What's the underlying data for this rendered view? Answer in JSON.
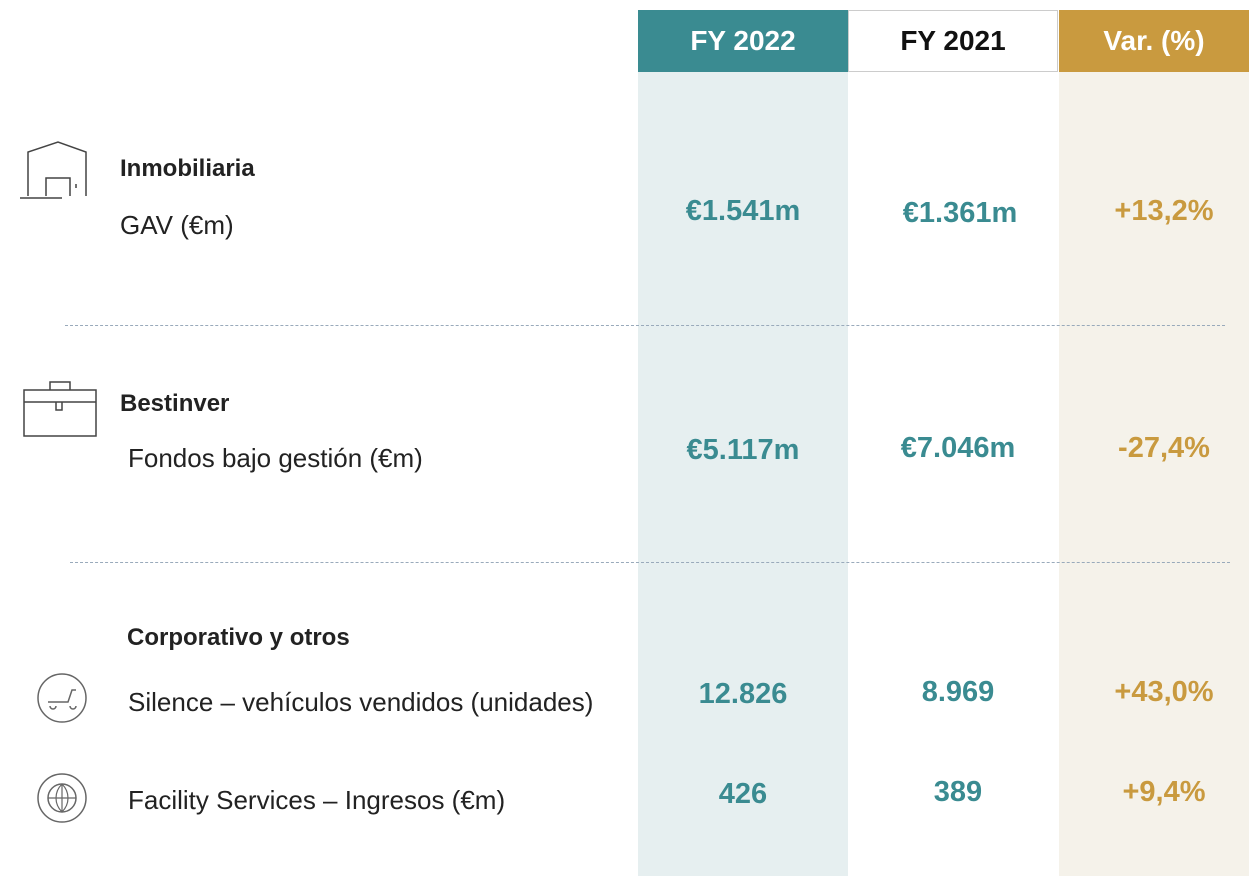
{
  "header": {
    "columns": [
      "FY 2022",
      "FY 2021",
      "Var. (%)"
    ]
  },
  "sections": [
    {
      "title": "Inmobiliaria",
      "rows": [
        {
          "label": "GAV (€m)",
          "values": [
            "€1.541m",
            "€1.361m",
            "+13,2%"
          ]
        }
      ]
    },
    {
      "title": "Bestinver",
      "rows": [
        {
          "label": "Fondos bajo gestión (€m)",
          "values": [
            "€5.117m",
            "€7.046m",
            "-27,4%"
          ]
        }
      ]
    },
    {
      "title": "Corporativo y otros",
      "rows": [
        {
          "label": "Silence – vehículos vendidos (unidades)",
          "values": [
            "12.826",
            "8.969",
            "+43,0%"
          ]
        },
        {
          "label": "Facility Services – Ingresos (€m)",
          "values": [
            "426",
            "389",
            "+9,4%"
          ]
        }
      ]
    }
  ]
}
